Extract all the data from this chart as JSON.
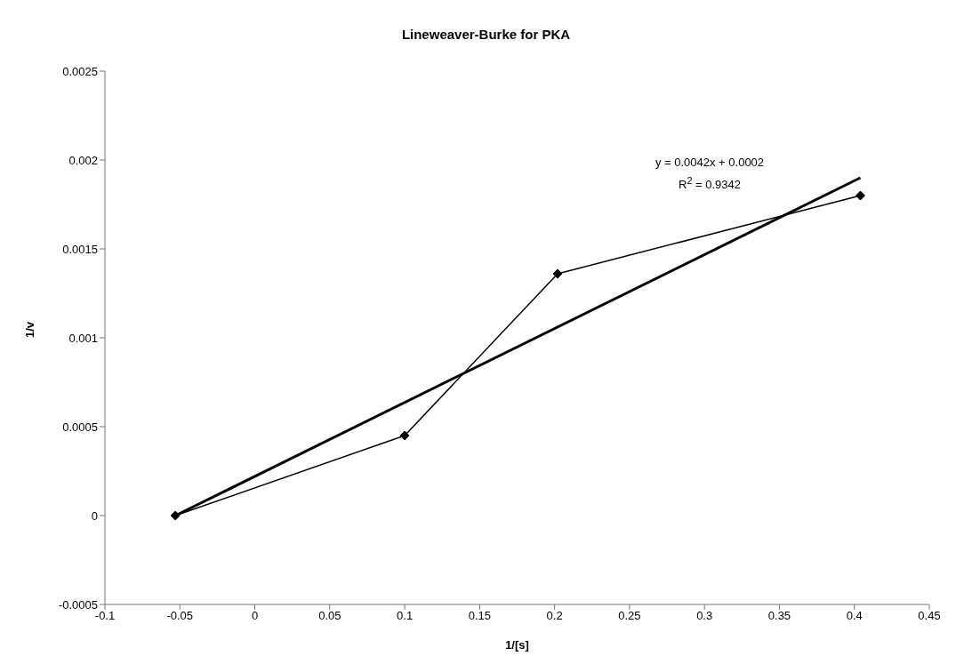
{
  "chart_data": {
    "type": "line",
    "title": "Lineweaver-Burke for PKA",
    "xlabel": "1/[s]",
    "ylabel": "1/v",
    "xlim": [
      -0.1,
      0.45
    ],
    "xticks": [
      -0.1,
      -0.05,
      0,
      0.05,
      0.1,
      0.15,
      0.2,
      0.25,
      0.3,
      0.35,
      0.4,
      0.45
    ],
    "ylim": [
      -0.0005,
      0.0025
    ],
    "yticks": [
      -0.0005,
      0,
      0.0005,
      0.001,
      0.0015,
      0.002,
      0.0025
    ],
    "grid": false,
    "annotations": [
      "y = 0.0042x + 0.0002",
      "R$^{2}$ = 0.9342"
    ],
    "series": [
      {
        "color": "#000000",
        "marker": "diamond",
        "x": [
          -0.053,
          0.1,
          0.202,
          0.404
        ],
        "values": [
          0,
          0.00045,
          0.00136,
          0.0018
        ]
      },
      {
        "color": "#000000",
        "marker": "none",
        "x": [
          -0.053,
          0.404
        ],
        "values": [
          0,
          0.0019
        ]
      }
    ]
  }
}
